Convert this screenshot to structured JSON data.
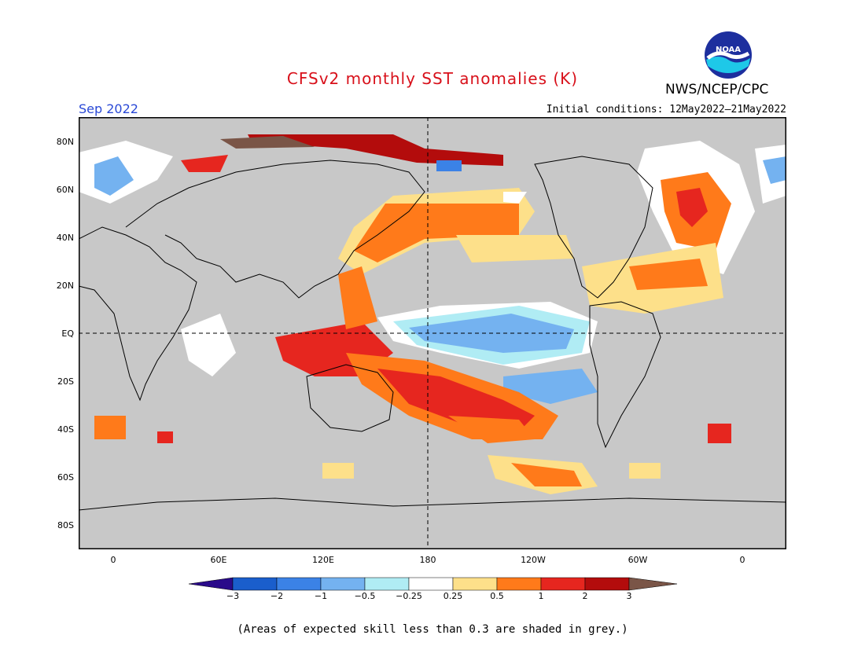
{
  "title": "CFSv2 monthly SST anomalies (K)",
  "organization": "NWS/NCEP/CPC",
  "logo_text": "NOAA",
  "valid_month": "Sep 2022",
  "initial_conditions": "Initial conditions: 12May2022–21May2022",
  "lat_labels": [
    "80N",
    "60N",
    "40N",
    "20N",
    "EQ",
    "20S",
    "40S",
    "60S",
    "80S"
  ],
  "lon_labels": [
    "0",
    "60E",
    "120E",
    "180",
    "120W",
    "60W",
    "0"
  ],
  "colorbar": {
    "labels": [
      "−3",
      "−2",
      "−1",
      "−0.5",
      "−0.25",
      "0.25",
      "0.5",
      "1",
      "2",
      "3"
    ],
    "colors": [
      "#2a0a8a",
      "#1a5ecc",
      "#3b82e6",
      "#74b2f0",
      "#b0ecf4",
      "#ffffff",
      "#fde08a",
      "#ff7a1a",
      "#e6261f",
      "#b30c0c",
      "#7a5547"
    ]
  },
  "mask_color": "#c8c8c8",
  "footnote": "(Areas of expected skill less than 0.3 are shaded in grey.)"
}
